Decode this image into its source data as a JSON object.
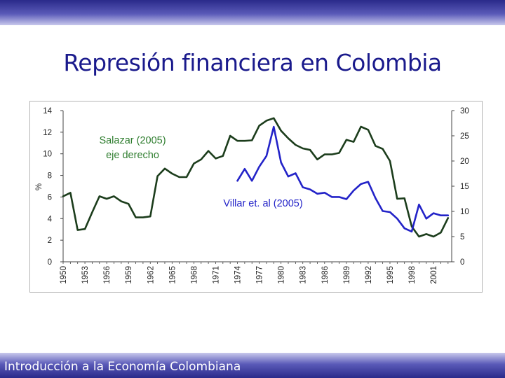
{
  "slide": {
    "title": "Represión financiera en Colombia",
    "footer": "Introducción a la Economía Colombiana"
  },
  "colors": {
    "band": "#3a3a9e",
    "title": "#1a1a8c",
    "salazar": "#1c3d1c",
    "villar": "#2323c8",
    "salazar_label": "#2e7d2e",
    "villar_label": "#2323c8"
  },
  "chart_data": {
    "type": "line",
    "ylabel": "%",
    "x_ticks": [
      "1950",
      "1953",
      "1956",
      "1959",
      "1962",
      "1965",
      "1968",
      "1971",
      "1974",
      "1977",
      "1980",
      "1983",
      "1986",
      "1989",
      "1992",
      "1995",
      "1998",
      "2001"
    ],
    "y_left": {
      "min": 0,
      "max": 14,
      "ticks": [
        "0",
        "2",
        "4",
        "6",
        "8",
        "10",
        "12",
        "14"
      ]
    },
    "y_right": {
      "min": 0,
      "max": 30,
      "ticks": [
        "0",
        "5",
        "10",
        "15",
        "20",
        "25",
        "30"
      ]
    },
    "series": [
      {
        "name": "Salazar (2005)",
        "note": "eje derecho",
        "axis": "right",
        "x": [
          1950,
          1951,
          1952,
          1953,
          1954,
          1955,
          1956,
          1957,
          1958,
          1959,
          1960,
          1961,
          1962,
          1963,
          1964,
          1965,
          1966,
          1967,
          1968,
          1969,
          1970,
          1971,
          1972,
          1973,
          1974,
          1975,
          1976,
          1977,
          1978,
          1979,
          1980,
          1981,
          1982,
          1983,
          1984,
          1985,
          1986,
          1987,
          1988,
          1989,
          1990,
          1991,
          1992,
          1993,
          1994,
          1995,
          1996,
          1997,
          1998,
          1999,
          2000,
          2001,
          2002,
          2003
        ],
        "values": [
          13,
          13.7,
          6.3,
          6.5,
          9.8,
          13,
          12.5,
          13,
          12,
          11.5,
          8.8,
          8.8,
          9,
          17,
          18.5,
          17.5,
          16.8,
          16.8,
          19.5,
          20.3,
          22,
          20.5,
          21,
          25,
          24,
          24,
          24.1,
          27,
          28,
          28.5,
          26,
          24.5,
          23.2,
          22.5,
          22.2,
          20.3,
          21.3,
          21.3,
          21.6,
          24.2,
          23.8,
          26.8,
          26.2,
          23,
          22.4,
          20,
          12.5,
          12.6,
          7,
          5,
          5.5,
          5,
          5.8,
          8.7
        ]
      },
      {
        "name": "Villar et. al (2005)",
        "axis": "left",
        "x": [
          1974,
          1975,
          1976,
          1977,
          1978,
          1979,
          1980,
          1981,
          1982,
          1983,
          1984,
          1985,
          1986,
          1987,
          1988,
          1989,
          1990,
          1991,
          1992,
          1993,
          1994,
          1995,
          1996,
          1997,
          1998,
          1999,
          2000,
          2001,
          2002,
          2003
        ],
        "values": [
          7.5,
          8.6,
          7.5,
          8.8,
          9.8,
          12.5,
          9.2,
          7.9,
          8.2,
          6.9,
          6.7,
          6.3,
          6.4,
          6,
          6,
          5.8,
          6.6,
          7.2,
          7.4,
          5.9,
          4.7,
          4.6,
          4,
          3.1,
          2.8,
          5.3,
          4,
          4.5,
          4.3,
          4.3
        ]
      }
    ],
    "annotations": [
      {
        "text": "Salazar (2005)",
        "series": "Salazar (2005)"
      },
      {
        "text": "eje derecho",
        "series": "Salazar (2005)"
      },
      {
        "text": "Villar et. al (2005)",
        "series": "Villar et. al (2005)"
      }
    ],
    "grid": false,
    "legend": "none"
  }
}
